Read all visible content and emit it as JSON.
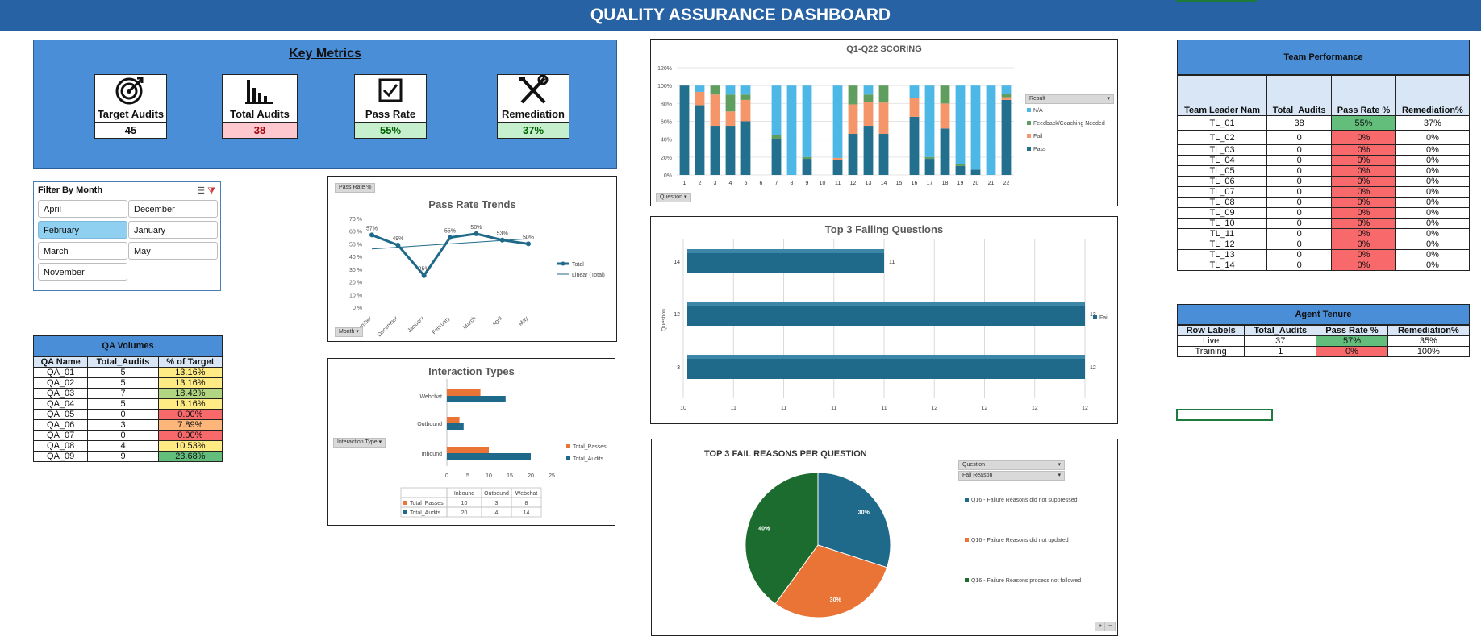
{
  "banner": {
    "title": "QUALITY ASSURANCE DASHBOARD"
  },
  "colors": {
    "banner": "#2762a4",
    "metrics_panel": "#4a8ed8",
    "pass": "#236f8e",
    "fail": "#f4956a",
    "feedback": "#5f9e5e",
    "na": "#4db8e6",
    "teal_bar": "#1f6a8a",
    "orange_bar": "#ea7436",
    "green_pie": "#1c6b2f"
  },
  "key_metrics": {
    "title": "Key Metrics",
    "items": [
      {
        "label": "Target Audits",
        "value": "45",
        "icon": "target-icon"
      },
      {
        "label": "Total Audits",
        "value": "38",
        "icon": "bar-chart-icon"
      },
      {
        "label": "Pass Rate",
        "value": "55%",
        "icon": "checkbox-icon"
      },
      {
        "label": "Remediation",
        "value": "37%",
        "icon": "tools-icon"
      }
    ]
  },
  "filter": {
    "title": "Filter By Month",
    "months": [
      "April",
      "December",
      "February",
      "January",
      "March",
      "May",
      "November"
    ],
    "selected": "February"
  },
  "qa_volumes": {
    "title": "QA Volumes",
    "headers": [
      "QA Name",
      "Total_Audits",
      "% of Target"
    ],
    "rows": [
      [
        "QA_01",
        "5",
        "13.16%"
      ],
      [
        "QA_02",
        "5",
        "13.16%"
      ],
      [
        "QA_03",
        "7",
        "18.42%"
      ],
      [
        "QA_04",
        "5",
        "13.16%"
      ],
      [
        "QA_05",
        "0",
        "0.00%"
      ],
      [
        "QA_06",
        "3",
        "7.89%"
      ],
      [
        "QA_07",
        "0",
        "0.00%"
      ],
      [
        "QA_08",
        "4",
        "10.53%"
      ],
      [
        "QA_09",
        "9",
        "23.68%"
      ]
    ]
  },
  "team_performance": {
    "title": "Team Performance",
    "headers": [
      "Team Leader Nam",
      "Total_Audits",
      "Pass Rate %",
      "Remediation%"
    ],
    "rows": [
      [
        "TL_01",
        "38",
        "55%",
        "37%"
      ],
      [
        "TL_02",
        "0",
        "0%",
        "0%"
      ],
      [
        "TL_03",
        "0",
        "0%",
        "0%"
      ],
      [
        "TL_04",
        "0",
        "0%",
        "0%"
      ],
      [
        "TL_05",
        "0",
        "0%",
        "0%"
      ],
      [
        "TL_06",
        "0",
        "0%",
        "0%"
      ],
      [
        "TL_07",
        "0",
        "0%",
        "0%"
      ],
      [
        "TL_08",
        "0",
        "0%",
        "0%"
      ],
      [
        "TL_09",
        "0",
        "0%",
        "0%"
      ],
      [
        "TL_10",
        "0",
        "0%",
        "0%"
      ],
      [
        "TL_11",
        "0",
        "0%",
        "0%"
      ],
      [
        "TL_12",
        "0",
        "0%",
        "0%"
      ],
      [
        "TL_13",
        "0",
        "0%",
        "0%"
      ],
      [
        "TL_14",
        "0",
        "0%",
        "0%"
      ]
    ]
  },
  "agent_tenure": {
    "title": "Agent Tenure",
    "headers": [
      "Row Labels",
      "Total_Audits",
      "Pass Rate %",
      "Remediation%"
    ],
    "rows": [
      [
        "Live",
        "37",
        "57%",
        "35%"
      ],
      [
        "Training",
        "1",
        "0%",
        "100%"
      ]
    ]
  },
  "chart_data": [
    {
      "type": "line",
      "title": "Pass Rate Trends",
      "field_button": "Pass Rate %",
      "axis_button": "Month",
      "categories": [
        "November",
        "December",
        "January",
        "February",
        "March",
        "April",
        "May"
      ],
      "series": [
        {
          "name": "Total",
          "values": [
            57,
            49,
            25,
            55,
            58,
            53,
            50
          ]
        }
      ],
      "data_labels": [
        "57%",
        "49%",
        "25%",
        "55%",
        "58%",
        "53%",
        "50%"
      ],
      "trendline": {
        "name": "Linear (Total)",
        "start": 46,
        "end": 54
      },
      "ylim": [
        0,
        70
      ],
      "yticks": [
        "0 %",
        "10 %",
        "20 %",
        "30 %",
        "40 %",
        "50 %",
        "60 %",
        "70 %"
      ]
    },
    {
      "type": "bar",
      "title": "Q1-Q22 SCORING",
      "axis_button": "Question",
      "legend_field": "Result",
      "categories": [
        "1",
        "2",
        "3",
        "4",
        "5",
        "6",
        "7",
        "8",
        "9",
        "10",
        "11",
        "12",
        "13",
        "14",
        "15",
        "16",
        "17",
        "18",
        "19",
        "20",
        "21",
        "22"
      ],
      "stacked": true,
      "series": [
        {
          "name": "Pass",
          "values": [
            100,
            78,
            55,
            55,
            60,
            0,
            40,
            0,
            18,
            0,
            17,
            46,
            55,
            46,
            0,
            65,
            18,
            52,
            10,
            6,
            0,
            84
          ]
        },
        {
          "name": "Fail",
          "values": [
            0,
            15,
            35,
            16,
            24,
            0,
            0,
            0,
            0,
            0,
            2,
            33,
            27,
            35,
            0,
            21,
            0,
            28,
            0,
            0,
            0,
            3
          ]
        },
        {
          "name": "Feedback/Coaching Needed",
          "values": [
            0,
            0,
            10,
            19,
            6,
            0,
            5,
            0,
            2,
            0,
            0,
            21,
            8,
            19,
            0,
            0,
            2,
            20,
            2,
            0,
            0,
            4
          ]
        },
        {
          "name": "N/A",
          "values": [
            0,
            7,
            0,
            10,
            10,
            0,
            55,
            100,
            80,
            0,
            81,
            0,
            10,
            0,
            0,
            14,
            80,
            0,
            88,
            94,
            100,
            9
          ]
        }
      ],
      "ylim": [
        0,
        120
      ],
      "yticks": [
        "0%",
        "20%",
        "40%",
        "60%",
        "80%",
        "100%",
        "120%"
      ]
    },
    {
      "type": "bar",
      "orientation": "horizontal",
      "title": "Top 3 Failing Questions",
      "ylabel": "Question",
      "categories": [
        "14",
        "12",
        "3"
      ],
      "series": [
        {
          "name": "Fail",
          "values": [
            11,
            12,
            12
          ]
        }
      ],
      "xticks": [
        "10",
        "11",
        "11",
        "11",
        "11",
        "12",
        "12",
        "12",
        "12"
      ]
    },
    {
      "type": "bar",
      "orientation": "horizontal",
      "title": "Interaction Types",
      "filter_button": "Interaction Type",
      "categories": [
        "Inbound",
        "Outbound",
        "Webchat"
      ],
      "series": [
        {
          "name": "Total_Passes",
          "values": [
            10,
            3,
            8
          ]
        },
        {
          "name": "Total_Audits",
          "values": [
            20,
            4,
            14
          ]
        }
      ],
      "xlim": [
        0,
        25
      ],
      "xticks": [
        "0",
        "5",
        "10",
        "15",
        "20",
        "25"
      ]
    },
    {
      "type": "pie",
      "title": "TOP 3 FAIL REASONS PER QUESTION",
      "filters": [
        "Question",
        "Fail Reason"
      ],
      "slices": [
        {
          "name": "Q16 - Failure Reasons did not suppressed",
          "value": 30,
          "label": "30%"
        },
        {
          "name": "Q16 - Failure Reasons did not updated",
          "value": 30,
          "label": "30%"
        },
        {
          "name": "Q16 - Failure Reasons process not followed",
          "value": 40,
          "label": "40%"
        }
      ],
      "zoom_buttons": [
        "+",
        "−"
      ]
    }
  ]
}
